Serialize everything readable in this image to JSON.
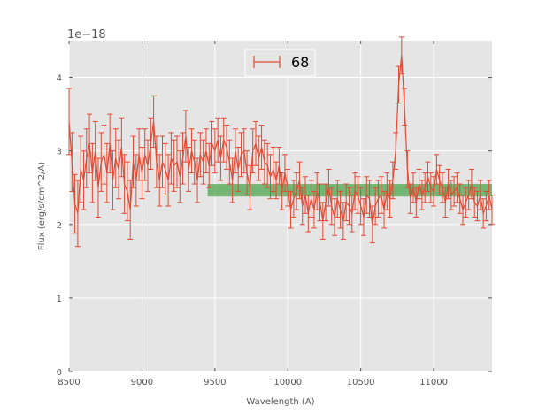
{
  "chart_data": {
    "type": "line",
    "xlabel": "Wavelength (A)",
    "ylabel": "Flux (erg/s/cm^2/A)",
    "y_offset_label": "1e−18",
    "xlim": [
      8500,
      11400
    ],
    "ylim": [
      0,
      4.5
    ],
    "x_ticks": [
      8500,
      9000,
      9500,
      10000,
      10500,
      11000
    ],
    "y_ticks": [
      0,
      1,
      2,
      3,
      4
    ],
    "grid": true,
    "legend": {
      "position": "top-center",
      "entries": [
        "68"
      ]
    },
    "colors": {
      "series": "#e24a33",
      "band": "#4ca64c",
      "background": "#e5e5e5",
      "grid": "#ffffff"
    },
    "band": {
      "x_start": 9450,
      "x_end": 11400,
      "y_low": 2.38,
      "y_high": 2.55
    },
    "series": [
      {
        "name": "68",
        "x": [
          8500,
          8520,
          8540,
          8560,
          8580,
          8600,
          8620,
          8640,
          8660,
          8680,
          8700,
          8720,
          8740,
          8760,
          8780,
          8800,
          8820,
          8840,
          8860,
          8880,
          8900,
          8920,
          8940,
          8960,
          8980,
          9000,
          9020,
          9040,
          9060,
          9080,
          9100,
          9120,
          9140,
          9160,
          9180,
          9200,
          9220,
          9240,
          9260,
          9280,
          9300,
          9320,
          9340,
          9360,
          9380,
          9400,
          9420,
          9440,
          9460,
          9480,
          9500,
          9520,
          9540,
          9560,
          9580,
          9600,
          9620,
          9640,
          9660,
          9680,
          9700,
          9720,
          9740,
          9760,
          9780,
          9800,
          9820,
          9840,
          9860,
          9880,
          9900,
          9920,
          9940,
          9960,
          9980,
          10000,
          10020,
          10040,
          10060,
          10080,
          10100,
          10120,
          10140,
          10160,
          10180,
          10200,
          10220,
          10240,
          10260,
          10280,
          10300,
          10320,
          10340,
          10360,
          10380,
          10400,
          10420,
          10440,
          10460,
          10480,
          10500,
          10520,
          10540,
          10560,
          10580,
          10600,
          10620,
          10640,
          10660,
          10680,
          10700,
          10720,
          10740,
          10760,
          10780,
          10800,
          10820,
          10840,
          10860,
          10880,
          10900,
          10920,
          10940,
          10960,
          10980,
          11000,
          11020,
          11040,
          11060,
          11080,
          11100,
          11120,
          11140,
          11160,
          11180,
          11200,
          11220,
          11240,
          11260,
          11280,
          11300,
          11320,
          11340,
          11360,
          11380,
          11400
        ],
        "y": [
          3.4,
          2.85,
          2.28,
          2.15,
          2.75,
          2.6,
          2.9,
          3.1,
          2.7,
          3.0,
          2.5,
          2.85,
          2.95,
          2.7,
          3.1,
          2.6,
          2.9,
          2.75,
          3.05,
          2.55,
          2.45,
          2.2,
          2.85,
          2.6,
          2.95,
          2.7,
          2.95,
          2.8,
          3.1,
          3.4,
          2.85,
          2.6,
          2.85,
          2.75,
          2.6,
          2.9,
          2.8,
          2.85,
          2.65,
          2.9,
          3.2,
          2.75,
          3.0,
          2.85,
          2.6,
          2.95,
          2.85,
          3.0,
          2.8,
          3.1,
          3.0,
          3.15,
          2.9,
          3.15,
          3.05,
          2.85,
          2.6,
          3.0,
          2.75,
          2.95,
          3.0,
          2.7,
          2.5,
          3.0,
          3.1,
          2.9,
          3.05,
          2.85,
          2.8,
          2.65,
          2.75,
          2.6,
          2.8,
          2.45,
          2.7,
          2.5,
          2.2,
          2.35,
          2.45,
          2.6,
          2.25,
          2.4,
          2.15,
          2.35,
          2.2,
          2.45,
          2.3,
          2.05,
          2.3,
          2.5,
          2.25,
          2.1,
          2.35,
          2.2,
          2.05,
          2.3,
          2.25,
          2.15,
          2.45,
          2.4,
          2.25,
          2.1,
          2.4,
          2.35,
          2.0,
          2.25,
          2.35,
          2.4,
          2.2,
          2.45,
          2.35,
          2.6,
          3.0,
          3.9,
          4.3,
          3.6,
          2.75,
          2.35,
          2.5,
          2.3,
          2.55,
          2.4,
          2.5,
          2.65,
          2.5,
          2.45,
          2.75,
          2.6,
          2.5,
          2.3,
          2.55,
          2.4,
          2.45,
          2.5,
          2.35,
          2.2,
          2.3,
          2.4,
          2.55,
          2.3,
          2.25,
          2.4,
          2.15,
          2.25,
          2.4,
          2.2
        ],
        "err": [
          0.45,
          0.4,
          0.4,
          0.45,
          0.45,
          0.4,
          0.4,
          0.4,
          0.4,
          0.4,
          0.4,
          0.4,
          0.4,
          0.4,
          0.4,
          0.4,
          0.4,
          0.4,
          0.4,
          0.4,
          0.4,
          0.4,
          0.35,
          0.35,
          0.35,
          0.35,
          0.35,
          0.35,
          0.35,
          0.35,
          0.35,
          0.35,
          0.35,
          0.35,
          0.35,
          0.35,
          0.35,
          0.35,
          0.35,
          0.35,
          0.35,
          0.3,
          0.3,
          0.3,
          0.3,
          0.3,
          0.3,
          0.3,
          0.3,
          0.3,
          0.3,
          0.3,
          0.3,
          0.3,
          0.3,
          0.3,
          0.3,
          0.3,
          0.3,
          0.3,
          0.3,
          0.3,
          0.3,
          0.3,
          0.3,
          0.3,
          0.3,
          0.3,
          0.3,
          0.3,
          0.3,
          0.25,
          0.25,
          0.25,
          0.25,
          0.25,
          0.25,
          0.25,
          0.25,
          0.25,
          0.25,
          0.25,
          0.25,
          0.25,
          0.25,
          0.25,
          0.25,
          0.25,
          0.25,
          0.25,
          0.25,
          0.25,
          0.25,
          0.25,
          0.25,
          0.25,
          0.25,
          0.25,
          0.25,
          0.25,
          0.25,
          0.25,
          0.25,
          0.25,
          0.25,
          0.25,
          0.25,
          0.25,
          0.25,
          0.25,
          0.25,
          0.25,
          0.25,
          0.25,
          0.25,
          0.25,
          0.25,
          0.2,
          0.2,
          0.2,
          0.2,
          0.2,
          0.2,
          0.2,
          0.2,
          0.2,
          0.2,
          0.2,
          0.2,
          0.2,
          0.2,
          0.2,
          0.2,
          0.2,
          0.2,
          0.2,
          0.2,
          0.2,
          0.2,
          0.2,
          0.2,
          0.2,
          0.2,
          0.2,
          0.2,
          0.2
        ]
      }
    ]
  }
}
